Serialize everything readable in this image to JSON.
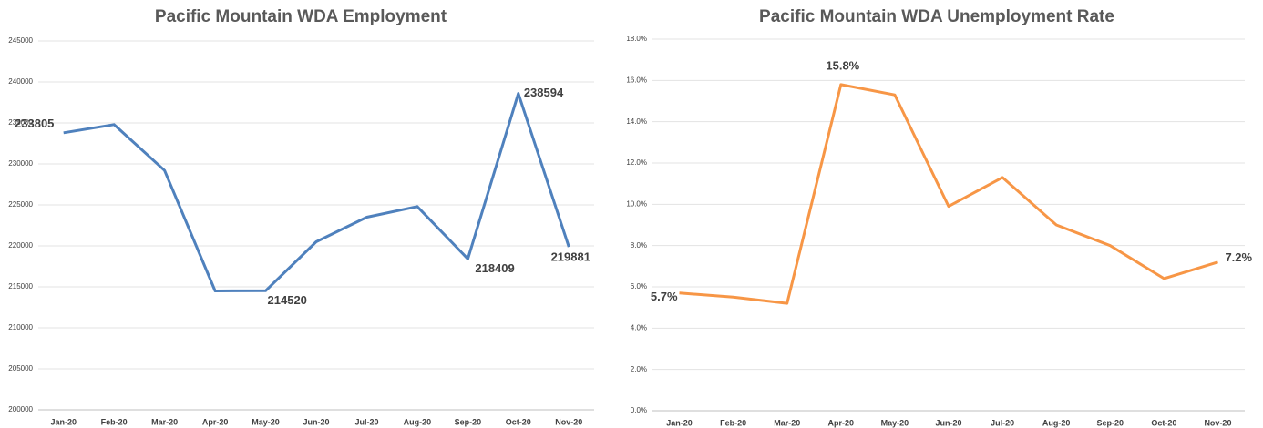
{
  "chart_data": [
    {
      "type": "line",
      "title": "Pacific Mountain WDA Employment",
      "categories": [
        "Jan-20",
        "Feb-20",
        "Mar-20",
        "Apr-20",
        "May-20",
        "Jun-20",
        "Jul-20",
        "Aug-20",
        "Sep-20",
        "Oct-20",
        "Nov-20"
      ],
      "series": [
        {
          "name": "Employment",
          "color": "#4f81bd",
          "values": [
            233805,
            234800,
            229200,
            214500,
            214520,
            220500,
            223500,
            224800,
            218409,
            238594,
            219881
          ],
          "value_labels": [
            "233805",
            null,
            null,
            null,
            "214520",
            null,
            null,
            null,
            "218409",
            "238594",
            "219881"
          ]
        }
      ],
      "ylim": [
        200000,
        245000
      ],
      "yticks": [
        200000,
        205000,
        210000,
        215000,
        220000,
        225000,
        230000,
        235000,
        240000,
        245000
      ],
      "grid": true
    },
    {
      "type": "line",
      "title": "Pacific Mountain WDA Unemployment Rate",
      "categories": [
        "Jan-20",
        "Feb-20",
        "Mar-20",
        "Apr-20",
        "May-20",
        "Jun-20",
        "Jul-20",
        "Aug-20",
        "Sep-20",
        "Oct-20",
        "Nov-20"
      ],
      "series": [
        {
          "name": "Unemployment Rate",
          "color": "#f79646",
          "values": [
            5.7,
            5.5,
            5.2,
            15.8,
            15.3,
            9.9,
            11.3,
            9.0,
            8.0,
            6.4,
            7.2
          ],
          "value_labels": [
            "5.7%",
            null,
            null,
            "15.8%",
            null,
            null,
            null,
            null,
            null,
            null,
            "7.2%"
          ]
        }
      ],
      "ylim": [
        0,
        18
      ],
      "yticks": [
        {
          "value": 0,
          "label": "0.0%"
        },
        {
          "value": 2,
          "label": "2.0%"
        },
        {
          "value": 4,
          "label": "4.0%"
        },
        {
          "value": 6,
          "label": "6.0%"
        },
        {
          "value": 8,
          "label": "8.0%"
        },
        {
          "value": 10,
          "label": "10.0%"
        },
        {
          "value": 12,
          "label": "12.0%"
        },
        {
          "value": 14,
          "label": "14.0%"
        },
        {
          "value": 16,
          "label": "16.0%"
        },
        {
          "value": 18,
          "label": "18.0%"
        }
      ],
      "grid": true
    }
  ]
}
